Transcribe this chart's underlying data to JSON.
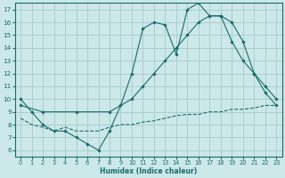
{
  "xlabel": "Humidex (Indice chaleur)",
  "bg_color": "#cce8e8",
  "grid_color": "#aacfcf",
  "line_color": "#1a6b6b",
  "xlim": [
    -0.5,
    23.5
  ],
  "ylim": [
    5.5,
    17.5
  ],
  "yticks": [
    6,
    7,
    8,
    9,
    10,
    11,
    12,
    13,
    14,
    15,
    16,
    17
  ],
  "xticks": [
    0,
    1,
    2,
    3,
    4,
    5,
    6,
    7,
    8,
    9,
    10,
    11,
    12,
    13,
    14,
    15,
    16,
    17,
    18,
    19,
    20,
    21,
    22,
    23
  ],
  "line1_x": [
    0,
    1,
    2,
    3,
    4,
    5,
    6,
    7,
    8,
    9,
    10,
    11,
    12,
    13,
    14,
    15,
    16,
    17,
    18,
    19,
    20,
    21,
    22,
    23
  ],
  "line1_y": [
    10.0,
    9.0,
    8.0,
    7.5,
    7.5,
    7.0,
    6.5,
    6.0,
    7.5,
    9.5,
    12.0,
    15.5,
    16.0,
    15.8,
    13.5,
    17.0,
    17.5,
    16.5,
    16.5,
    16.0,
    14.5,
    12.0,
    10.5,
    9.5
  ],
  "line2_x": [
    0,
    2,
    5,
    8,
    10,
    11,
    12,
    13,
    14,
    15,
    16,
    17,
    18,
    19,
    20,
    21,
    22,
    23
  ],
  "line2_y": [
    9.5,
    9.0,
    9.0,
    9.0,
    10.0,
    11.0,
    12.0,
    13.0,
    14.0,
    15.0,
    16.0,
    16.5,
    16.5,
    14.5,
    13.0,
    12.0,
    11.0,
    10.0
  ],
  "line3_x": [
    0,
    1,
    2,
    3,
    4,
    5,
    6,
    7,
    8,
    9,
    10,
    11,
    12,
    13,
    14,
    15,
    16,
    17,
    18,
    19,
    20,
    21,
    22,
    23
  ],
  "line3_y": [
    8.5,
    8.0,
    7.8,
    7.5,
    7.8,
    7.5,
    7.5,
    7.5,
    7.8,
    8.0,
    8.0,
    8.2,
    8.3,
    8.5,
    8.7,
    8.8,
    8.8,
    9.0,
    9.0,
    9.2,
    9.2,
    9.3,
    9.5,
    9.5
  ]
}
